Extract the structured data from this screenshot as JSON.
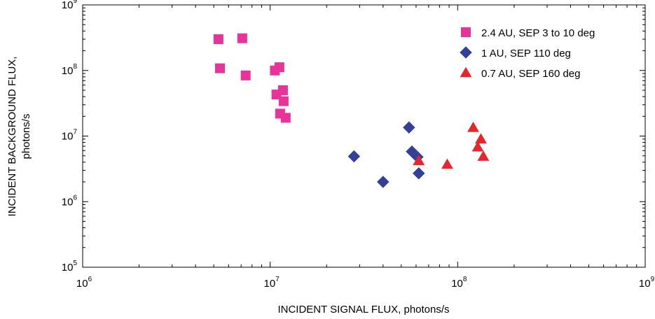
{
  "chart_data": {
    "type": "scatter",
    "xscale": "log",
    "yscale": "log",
    "xlim": [
      1000000,
      1000000000
    ],
    "ylim": [
      100000,
      1000000000
    ],
    "xlabel": "INCIDENT SIGNAL FLUX, photons/s",
    "ylabel_line1": "INCIDENT BACKGROUND FLUX,",
    "ylabel_line2": "photons/s",
    "x_ticks": [
      {
        "base": "10",
        "exp": "6",
        "value": 1000000
      },
      {
        "base": "10",
        "exp": "7",
        "value": 10000000
      },
      {
        "base": "10",
        "exp": "8",
        "value": 100000000
      },
      {
        "base": "10",
        "exp": "9",
        "value": 1000000000
      }
    ],
    "y_ticks": [
      {
        "base": "10",
        "exp": "5",
        "value": 100000
      },
      {
        "base": "10",
        "exp": "6",
        "value": 1000000
      },
      {
        "base": "10",
        "exp": "7",
        "value": 10000000
      },
      {
        "base": "10",
        "exp": "8",
        "value": 100000000
      },
      {
        "base": "10",
        "exp": "9",
        "value": 1000000000
      }
    ],
    "grid": false,
    "legend_position": "top-right",
    "series": [
      {
        "name": "2.4 AU, SEP 3 to 10 deg",
        "marker": "square",
        "color": "#e8349a",
        "points": [
          [
            5300000,
            300000000
          ],
          [
            7100000,
            310000000
          ],
          [
            5400000,
            108000000
          ],
          [
            7400000,
            84000000
          ],
          [
            10600000,
            100000000
          ],
          [
            11200000,
            112000000
          ],
          [
            10800000,
            43000000
          ],
          [
            11700000,
            50000000
          ],
          [
            11800000,
            34000000
          ],
          [
            11300000,
            22000000
          ],
          [
            12100000,
            19000000
          ]
        ]
      },
      {
        "name": "1 AU, SEP 110 deg",
        "marker": "diamond",
        "color": "#33409a",
        "points": [
          [
            28000000,
            4900000
          ],
          [
            40000000,
            2000000
          ],
          [
            55000000,
            13500000
          ],
          [
            57000000,
            5800000
          ],
          [
            61000000,
            4800000
          ],
          [
            62000000,
            2700000
          ]
        ]
      },
      {
        "name": "0.7 AU, SEP 160 deg",
        "marker": "triangle",
        "color": "#e8252d",
        "points": [
          [
            62000000,
            4200000
          ],
          [
            88000000,
            3700000
          ],
          [
            121000000,
            13500000
          ],
          [
            133000000,
            9000000
          ],
          [
            128000000,
            6800000
          ],
          [
            137000000,
            4900000
          ]
        ]
      }
    ]
  }
}
